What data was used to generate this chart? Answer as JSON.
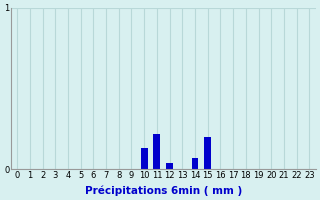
{
  "title": "",
  "xlabel": "Précipitations 6min ( mm )",
  "ylabel": "",
  "xlim": [
    -0.5,
    23.5
  ],
  "ylim": [
    0,
    1.0
  ],
  "yticks": [
    0,
    1
  ],
  "xticks": [
    0,
    1,
    2,
    3,
    4,
    5,
    6,
    7,
    8,
    9,
    10,
    11,
    12,
    13,
    14,
    15,
    16,
    17,
    18,
    19,
    20,
    21,
    22,
    23
  ],
  "background_color": "#d8f0f0",
  "bar_color": "#0000cc",
  "grid_color": "#b8d8d8",
  "bar_data": {
    "10": 0.13,
    "11": 0.22,
    "12": 0.04,
    "14": 0.07,
    "15": 0.2
  },
  "bar_width": 0.55,
  "tick_fontsize": 6.0,
  "xlabel_fontsize": 7.5
}
